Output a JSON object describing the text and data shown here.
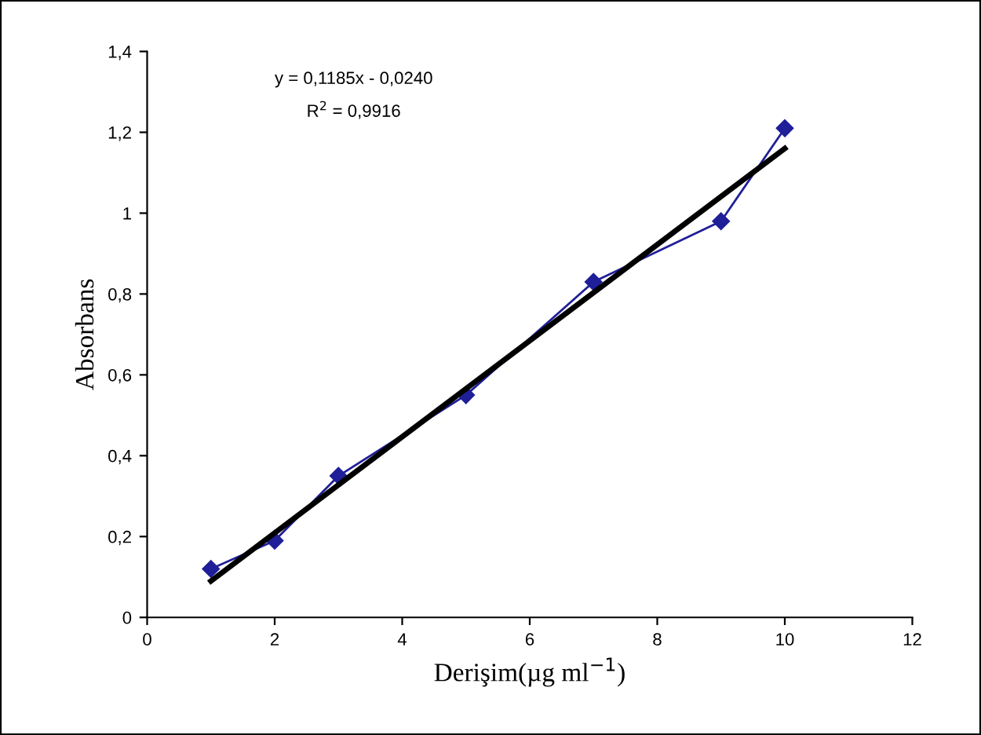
{
  "chart_data": {
    "type": "line",
    "xlabel": "Derişim(µg ml$^{−1}$)",
    "ylabel": "Absorbans",
    "annotations": [
      "y = 0,1185x - 0,0240",
      "R$^{2}$ = 0,9916"
    ],
    "series": [
      {
        "color": "#1f1f99",
        "marker": "diamond",
        "x": [
          1,
          2,
          3,
          5,
          7,
          9,
          10
        ],
        "values": [
          0.12,
          0.19,
          0.35,
          0.55,
          0.83,
          0.98,
          1.21
        ]
      },
      {
        "color": "#000000",
        "marker": "none",
        "x": [
          1,
          10
        ],
        "values": [
          0.09,
          1.16
        ]
      }
    ],
    "xlim": [
      0,
      12
    ],
    "xticks": [
      0,
      2,
      4,
      6,
      8,
      10,
      12
    ],
    "ylim": [
      0,
      1.4
    ],
    "yticks": [
      {
        "value": 0,
        "label": "0"
      },
      {
        "value": 0.2,
        "label": "0,2"
      },
      {
        "value": 0.4,
        "label": "0,4"
      },
      {
        "value": 0.6,
        "label": "0,6"
      },
      {
        "value": 0.8,
        "label": "0,8"
      },
      {
        "value": 1,
        "label": "1"
      },
      {
        "value": 1.2,
        "label": "1,2"
      },
      {
        "value": 1.4,
        "label": "1,4"
      }
    ],
    "grid": false,
    "legend": false
  }
}
